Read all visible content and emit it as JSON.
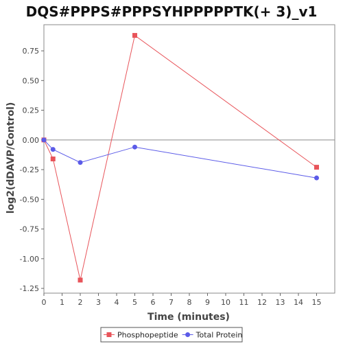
{
  "chart_data": {
    "type": "line",
    "title": "DQS#PPPS#PPPSYHPPPPPTK(+ 3)_v1",
    "xlabel": "Time (minutes)",
    "ylabel": "log2(dDAVP/Control)",
    "xlim": [
      0,
      16
    ],
    "ylim": [
      -1.29,
      0.97
    ],
    "x_ticks": [
      0,
      1,
      2,
      3,
      4,
      5,
      6,
      7,
      8,
      9,
      10,
      11,
      12,
      13,
      14,
      15
    ],
    "x_tick_labels": [
      "0",
      "1",
      "2",
      "3",
      "4",
      "5",
      "6",
      "7",
      "8",
      "9",
      "10",
      "11",
      "12",
      "13",
      "14",
      "15"
    ],
    "y_ticks": [
      -1.25,
      -1.0,
      -0.75,
      -0.5,
      -0.25,
      0.0,
      0.25,
      0.5,
      0.75
    ],
    "y_tick_labels": [
      "-1.25",
      "-1.00",
      "-0.75",
      "-0.50",
      "-0.25",
      "0.00",
      "0.25",
      "0.50",
      "0.75"
    ],
    "zero_line": 0,
    "grid": false,
    "legend_position": "bottom-center",
    "series": [
      {
        "name": "Phosphopeptide",
        "color": "#e8545a",
        "marker": "square",
        "x": [
          0,
          0.5,
          2,
          5,
          15
        ],
        "y": [
          0.0,
          -0.16,
          -1.18,
          0.88,
          -0.23
        ]
      },
      {
        "name": "Total Protein",
        "color": "#5b5be8",
        "marker": "circle",
        "x": [
          0,
          0.5,
          2,
          5,
          15
        ],
        "y": [
          0.0,
          -0.08,
          -0.19,
          -0.06,
          -0.32
        ]
      }
    ]
  }
}
